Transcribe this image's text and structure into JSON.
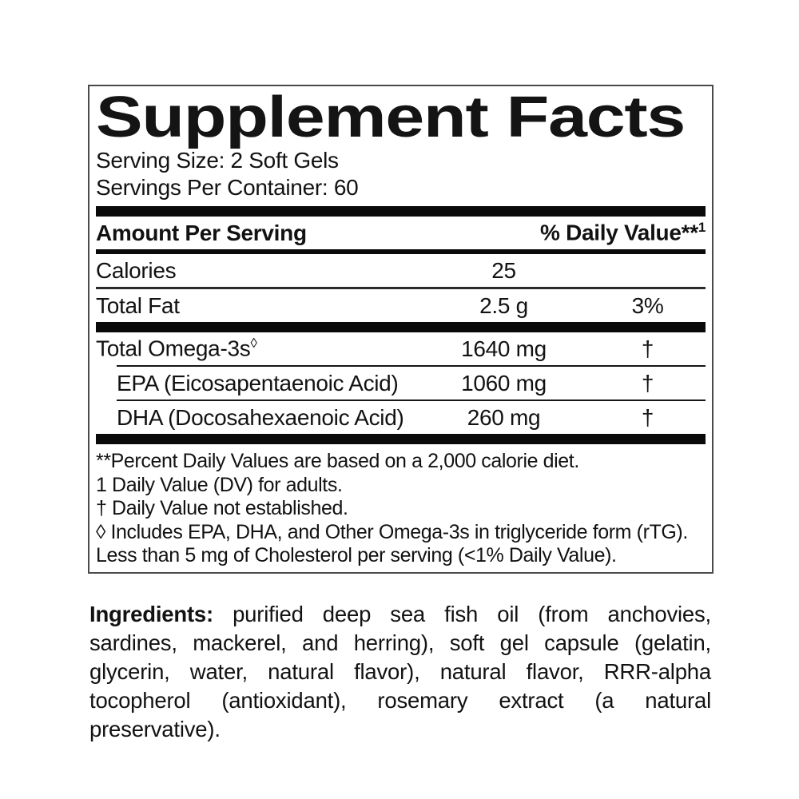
{
  "panel": {
    "title": "Supplement Facts",
    "serving_size": "Serving Size: 2 Soft Gels",
    "servings_per_container": "Servings Per Container: 60",
    "columns": {
      "amount_header": "Amount Per Serving",
      "dv_header": "% Daily Value**",
      "dv_header_sup": "1"
    },
    "rows": [
      {
        "name": "Calories",
        "sup": "",
        "amount": "25",
        "dv": ""
      },
      {
        "name": "Total Fat",
        "sup": "",
        "amount": "2.5 g",
        "dv": "3%"
      },
      {
        "name": "Total Omega-3s",
        "sup": "◊",
        "amount": "1640 mg",
        "dv": "†"
      },
      {
        "name": "EPA (Eicosapentaenoic Acid)",
        "sup": "",
        "amount": "1060 mg",
        "dv": "†"
      },
      {
        "name": "DHA (Docosahexaenoic Acid)",
        "sup": "",
        "amount": "260 mg",
        "dv": "†"
      }
    ],
    "footnotes": [
      "**Percent Daily Values are based on a 2,000 calorie diet.",
      "1 Daily Value (DV) for adults.",
      "† Daily Value not established.",
      "◊ Includes EPA, DHA, and Other Omega-3s in triglyceride form (rTG).",
      "Less than 5 mg of Cholesterol per serving (<1% Daily Value)."
    ]
  },
  "ingredients": {
    "label": "Ingredients:",
    "text": " purified deep sea fish oil (from anchovies, sardines, mackerel, and herring), soft gel capsule (gelatin, glycerin, water, natural flavor), natural flavor, RRR-alpha tocopherol (antioxidant), rosemary extract (a natural preservative)."
  },
  "colors": {
    "text": "#121212",
    "panel_border": "#4a4a4a",
    "divider": "#0a0a0a",
    "background": "#ffffff"
  }
}
